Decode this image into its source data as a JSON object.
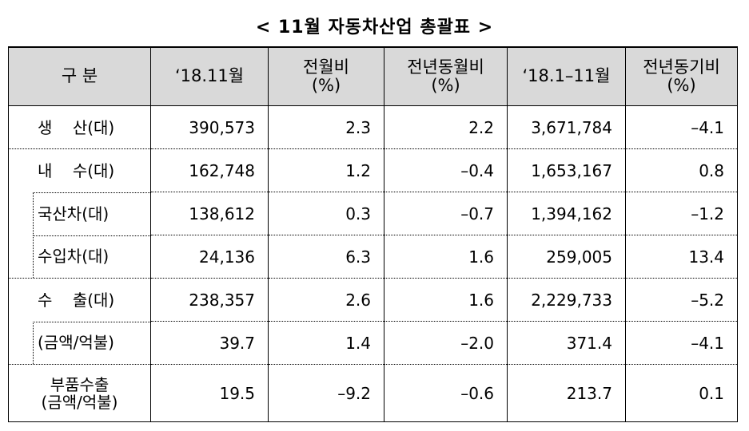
{
  "title": "< 11월 자동차산업 총괄표 >",
  "table": {
    "header": [
      "구   분",
      "‘18.11월",
      "전월비\n(%)",
      "전년동월비\n(%)",
      "‘18.1–11월",
      "전년동기비\n(%)"
    ],
    "rows": [
      [
        "생    산(대)",
        "390,573",
        "2.3",
        "2.2",
        "3,671,784",
        "–4.1"
      ],
      [
        "내    수(대)",
        "162,748",
        "1.2",
        "–0.4",
        "1,653,167",
        "0.8"
      ],
      [
        "국산차(대)",
        "138,612",
        "0.3",
        "–0.7",
        "1,394,162",
        "–1.2"
      ],
      [
        "수입차(대)",
        "24,136",
        "6.3",
        "1.6",
        "259,005",
        "13.4"
      ],
      [
        "수    출(대)",
        "238,357",
        "2.6",
        "1.6",
        "2,229,733",
        "–5.2"
      ],
      [
        "(금액/억불)",
        "39.7",
        "1.4",
        "–2.0",
        "371.4",
        "–4.1"
      ],
      [
        "부품수출\n(금액/억불)",
        "19.5",
        "–9.2",
        "–0.6",
        "213.7",
        "0.1"
      ]
    ]
  }
}
